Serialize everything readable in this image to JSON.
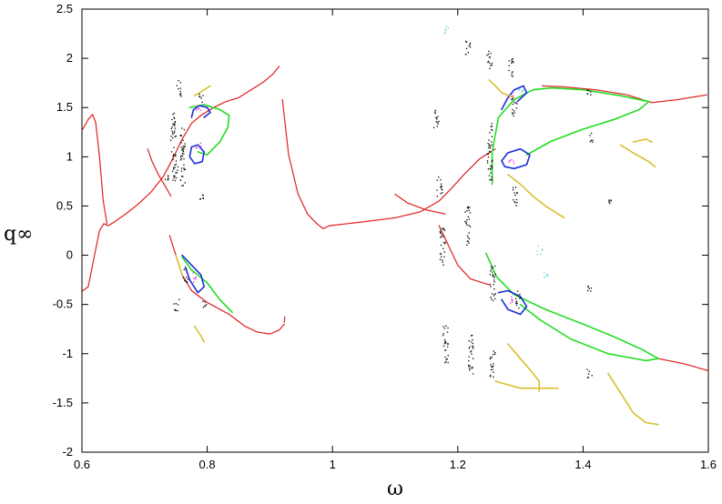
{
  "chart_data": {
    "type": "scatter",
    "title": "",
    "xlabel": "ω",
    "ylabel": "q∞",
    "xlim": [
      0.6,
      1.6
    ],
    "ylim": [
      -2,
      2.5
    ],
    "xticks": [
      "0.6",
      "0.8",
      "1",
      "1.2",
      "1.4",
      "1.6"
    ],
    "yticks": [
      "2.5",
      "2",
      "1.5",
      "1",
      "0.5",
      "0",
      "-0.5",
      "-1",
      "-1.5",
      "-2"
    ],
    "grid": false,
    "legend": "none",
    "series": [
      {
        "color": "#e02020",
        "style": "dots",
        "segments": [
          [
            [
              0.6,
              1.28
            ],
            [
              0.61,
              1.38
            ],
            [
              0.617,
              1.43
            ],
            [
              0.622,
              1.35
            ],
            [
              0.628,
              1.0
            ],
            [
              0.634,
              0.55
            ],
            [
              0.64,
              0.32
            ]
          ],
          [
            [
              0.6,
              -0.36
            ],
            [
              0.61,
              -0.32
            ],
            [
              0.62,
              0.0
            ],
            [
              0.628,
              0.25
            ],
            [
              0.635,
              0.32
            ],
            [
              0.642,
              0.3
            ],
            [
              0.652,
              0.34
            ],
            [
              0.67,
              0.42
            ],
            [
              0.69,
              0.52
            ],
            [
              0.71,
              0.64
            ],
            [
              0.73,
              0.8
            ],
            [
              0.745,
              0.98
            ],
            [
              0.76,
              1.18
            ],
            [
              0.775,
              1.34
            ],
            [
              0.79,
              1.42
            ],
            [
              0.81,
              1.5
            ],
            [
              0.83,
              1.56
            ],
            [
              0.85,
              1.6
            ],
            [
              0.87,
              1.68
            ],
            [
              0.89,
              1.76
            ],
            [
              0.905,
              1.84
            ],
            [
              0.915,
              1.92
            ]
          ],
          [
            [
              0.705,
              1.08
            ],
            [
              0.712,
              0.95
            ],
            [
              0.722,
              0.82
            ],
            [
              0.733,
              0.7
            ],
            [
              0.742,
              0.6
            ]
          ],
          [
            [
              0.74,
              0.2
            ],
            [
              0.75,
              0.0
            ],
            [
              0.76,
              -0.2
            ],
            [
              0.775,
              -0.36
            ],
            [
              0.8,
              -0.48
            ],
            [
              0.835,
              -0.6
            ],
            [
              0.86,
              -0.72
            ],
            [
              0.88,
              -0.78
            ],
            [
              0.9,
              -0.8
            ],
            [
              0.915,
              -0.76
            ],
            [
              0.923,
              -0.7
            ]
          ],
          [
            [
              0.923,
              -0.68
            ],
            [
              0.924,
              -0.62
            ]
          ],
          [
            [
              0.92,
              1.58
            ],
            [
              0.93,
              1.02
            ],
            [
              0.945,
              0.62
            ],
            [
              0.96,
              0.42
            ],
            [
              0.975,
              0.32
            ],
            [
              0.985,
              0.27
            ],
            [
              0.995,
              0.3
            ],
            [
              1.05,
              0.34
            ],
            [
              1.1,
              0.38
            ],
            [
              1.14,
              0.44
            ],
            [
              1.17,
              0.55
            ],
            [
              1.19,
              0.68
            ],
            [
              1.21,
              0.82
            ],
            [
              1.235,
              0.98
            ],
            [
              1.26,
              1.08
            ]
          ],
          [
            [
              1.1,
              0.62
            ],
            [
              1.12,
              0.53
            ],
            [
              1.15,
              0.46
            ],
            [
              1.18,
              0.42
            ]
          ],
          [
            [
              1.17,
              0.3
            ],
            [
              1.185,
              0.1
            ],
            [
              1.2,
              -0.1
            ],
            [
              1.22,
              -0.24
            ],
            [
              1.25,
              -0.3
            ]
          ],
          [
            [
              1.335,
              1.72
            ],
            [
              1.37,
              1.71
            ],
            [
              1.42,
              1.68
            ],
            [
              1.47,
              1.63
            ],
            [
              1.51,
              1.55
            ],
            [
              1.55,
              1.58
            ],
            [
              1.6,
              1.63
            ]
          ],
          [
            [
              1.52,
              -1.05
            ],
            [
              1.56,
              -1.1
            ],
            [
              1.6,
              -1.17
            ]
          ]
        ]
      },
      {
        "color": "#22dd22",
        "style": "line",
        "segments": [
          [
            [
              0.772,
              1.5
            ],
            [
              0.795,
              1.53
            ],
            [
              0.82,
              1.48
            ],
            [
              0.835,
              1.42
            ],
            [
              0.833,
              1.3
            ],
            [
              0.82,
              1.15
            ],
            [
              0.8,
              1.02
            ],
            [
              0.785,
              1.05
            ]
          ],
          [
            [
              0.76,
              -0.02
            ],
            [
              0.775,
              -0.15
            ],
            [
              0.8,
              -0.28
            ],
            [
              0.82,
              -0.45
            ],
            [
              0.84,
              -0.58
            ]
          ],
          [
            [
              1.255,
              0.72
            ],
            [
              1.255,
              1.05
            ],
            [
              1.265,
              1.4
            ],
            [
              1.29,
              1.58
            ],
            [
              1.32,
              1.68
            ],
            [
              1.35,
              1.7
            ],
            [
              1.4,
              1.68
            ],
            [
              1.46,
              1.62
            ],
            [
              1.505,
              1.56
            ],
            [
              1.49,
              1.48
            ],
            [
              1.45,
              1.38
            ],
            [
              1.4,
              1.28
            ],
            [
              1.35,
              1.16
            ],
            [
              1.31,
              1.02
            ]
          ],
          [
            [
              1.245,
              0.02
            ],
            [
              1.262,
              -0.22
            ],
            [
              1.29,
              -0.4
            ],
            [
              1.34,
              -0.55
            ],
            [
              1.4,
              -0.7
            ],
            [
              1.45,
              -0.83
            ],
            [
              1.495,
              -0.96
            ],
            [
              1.52,
              -1.05
            ],
            [
              1.5,
              -1.07
            ],
            [
              1.44,
              -1.0
            ],
            [
              1.38,
              -0.85
            ],
            [
              1.33,
              -0.65
            ],
            [
              1.3,
              -0.5
            ]
          ]
        ]
      },
      {
        "color": "#1a2ed8",
        "style": "line",
        "segments": [
          [
            [
              0.775,
              1.4
            ],
            [
              0.778,
              1.48
            ],
            [
              0.788,
              1.52
            ],
            [
              0.8,
              1.5
            ],
            [
              0.805,
              1.45
            ],
            [
              0.795,
              1.4
            ]
          ],
          [
            [
              0.775,
              1.1
            ],
            [
              0.785,
              1.12
            ],
            [
              0.795,
              1.05
            ],
            [
              0.792,
              0.95
            ],
            [
              0.78,
              0.93
            ],
            [
              0.772,
              1.0
            ],
            [
              0.775,
              1.1
            ]
          ],
          [
            [
              0.76,
              0.0
            ],
            [
              0.775,
              -0.1
            ],
            [
              0.79,
              -0.2
            ],
            [
              0.795,
              -0.32
            ],
            [
              0.785,
              -0.38
            ],
            [
              0.772,
              -0.25
            ],
            [
              0.765,
              -0.12
            ]
          ],
          [
            [
              1.27,
              1.48
            ],
            [
              1.28,
              1.6
            ],
            [
              1.29,
              1.68
            ],
            [
              1.305,
              1.72
            ],
            [
              1.31,
              1.65
            ],
            [
              1.295,
              1.56
            ]
          ],
          [
            [
              1.27,
              0.96
            ],
            [
              1.28,
              1.04
            ],
            [
              1.3,
              1.08
            ],
            [
              1.315,
              1.02
            ],
            [
              1.31,
              0.92
            ],
            [
              1.29,
              0.88
            ],
            [
              1.275,
              0.9
            ],
            [
              1.27,
              0.96
            ]
          ],
          [
            [
              1.265,
              -0.38
            ],
            [
              1.28,
              -0.36
            ],
            [
              1.3,
              -0.42
            ],
            [
              1.31,
              -0.52
            ],
            [
              1.3,
              -0.6
            ],
            [
              1.28,
              -0.55
            ],
            [
              1.27,
              -0.45
            ]
          ]
        ]
      },
      {
        "color": "#d8c030",
        "style": "line",
        "segments": [
          [
            [
              0.78,
              1.62
            ],
            [
              0.79,
              1.66
            ],
            [
              0.8,
              1.7
            ],
            [
              0.805,
              1.72
            ]
          ],
          [
            [
              0.75,
              0.0
            ],
            [
              0.755,
              -0.1
            ],
            [
              0.76,
              -0.2
            ]
          ],
          [
            [
              0.78,
              -0.72
            ],
            [
              0.79,
              -0.82
            ],
            [
              0.795,
              -0.88
            ]
          ],
          [
            [
              1.25,
              1.78
            ],
            [
              1.26,
              1.72
            ],
            [
              1.27,
              1.65
            ],
            [
              1.29,
              1.6
            ]
          ],
          [
            [
              1.28,
              0.82
            ],
            [
              1.3,
              0.72
            ],
            [
              1.32,
              0.6
            ],
            [
              1.34,
              0.5
            ],
            [
              1.37,
              0.38
            ]
          ],
          [
            [
              1.28,
              -0.9
            ],
            [
              1.3,
              -1.05
            ],
            [
              1.32,
              -1.2
            ],
            [
              1.33,
              -1.28
            ],
            [
              1.33,
              -1.38
            ]
          ],
          [
            [
              1.26,
              -1.28
            ],
            [
              1.3,
              -1.35
            ],
            [
              1.36,
              -1.35
            ]
          ],
          [
            [
              1.44,
              -1.2
            ],
            [
              1.46,
              -1.4
            ],
            [
              1.48,
              -1.6
            ],
            [
              1.5,
              -1.7
            ],
            [
              1.52,
              -1.72
            ]
          ],
          [
            [
              1.46,
              1.12
            ],
            [
              1.48,
              1.04
            ],
            [
              1.505,
              0.95
            ],
            [
              1.515,
              0.9
            ]
          ],
          [
            [
              1.48,
              1.15
            ],
            [
              1.5,
              1.18
            ],
            [
              1.51,
              1.15
            ]
          ]
        ]
      },
      {
        "color": "#000000",
        "style": "clusters",
        "clusters": [
          [
            0.735,
            0.8,
            0.03
          ],
          [
            0.745,
            1.2,
            0.25
          ],
          [
            0.748,
            0.9,
            0.15
          ],
          [
            0.755,
            1.7,
            0.08
          ],
          [
            0.76,
            1.0,
            0.3
          ],
          [
            0.75,
            -0.5,
            0.06
          ],
          [
            0.765,
            -0.2,
            0.08
          ],
          [
            0.79,
            0.6,
            0.03
          ],
          [
            0.79,
            1.6,
            0.05
          ],
          [
            0.795,
            -0.5,
            0.04
          ],
          [
            1.165,
            1.4,
            0.1
          ],
          [
            1.17,
            0.7,
            0.1
          ],
          [
            1.175,
            0.1,
            0.2
          ],
          [
            1.18,
            -0.9,
            0.2
          ],
          [
            1.215,
            2.1,
            0.08
          ],
          [
            1.215,
            0.3,
            0.2
          ],
          [
            1.22,
            -1.0,
            0.2
          ],
          [
            1.25,
            2.0,
            0.1
          ],
          [
            1.25,
            1.05,
            0.3
          ],
          [
            1.255,
            -0.3,
            0.2
          ],
          [
            1.255,
            -1.1,
            0.15
          ],
          [
            1.285,
            1.9,
            0.1
          ],
          [
            1.29,
            1.5,
            0.1
          ],
          [
            1.295,
            -0.45,
            0.1
          ],
          [
            1.29,
            0.6,
            0.1
          ],
          [
            1.41,
            1.66,
            0.03
          ],
          [
            1.41,
            -0.35,
            0.05
          ],
          [
            1.41,
            -1.2,
            0.05
          ],
          [
            1.41,
            1.2,
            0.05
          ],
          [
            1.44,
            0.55,
            0.02
          ]
        ]
      },
      {
        "color": "#e030e0",
        "style": "clusters",
        "clusters": [
          [
            0.785,
            1.5,
            0.04
          ],
          [
            0.785,
            1.12,
            0.03
          ],
          [
            0.78,
            -0.22,
            0.05
          ],
          [
            1.285,
            1.62,
            0.04
          ],
          [
            1.285,
            0.96,
            0.03
          ],
          [
            1.285,
            -0.45,
            0.04
          ]
        ]
      },
      {
        "color": "#60d0d0",
        "style": "clusters",
        "clusters": [
          [
            1.18,
            2.3,
            0.05
          ],
          [
            1.3,
            1.68,
            0.03
          ],
          [
            1.33,
            0.05,
            0.05
          ],
          [
            1.34,
            -0.2,
            0.03
          ]
        ]
      }
    ]
  }
}
